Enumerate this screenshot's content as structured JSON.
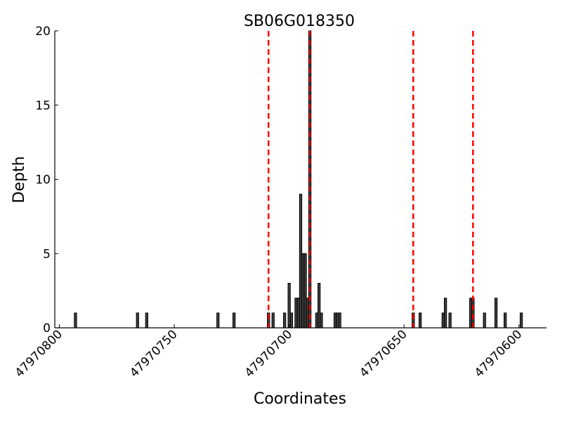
{
  "chart_data": {
    "type": "bar",
    "title": "SB06G018350",
    "xlabel": "Coordinates",
    "ylabel": "Depth",
    "xlim": [
      47970802,
      47970588
    ],
    "x_reversed": true,
    "ylim": [
      0,
      20
    ],
    "xticks": [
      47970800,
      47970750,
      47970700,
      47970650,
      47970600
    ],
    "xtick_labels": [
      "47970800",
      "47970750",
      "47970700",
      "47970650",
      "47970600"
    ],
    "yticks": [
      0,
      5,
      10,
      15,
      20
    ],
    "ytick_labels": [
      "0",
      "5",
      "10",
      "15",
      "20"
    ],
    "grid": false,
    "bar_color": "#404040",
    "x": [
      47970793,
      47970766,
      47970762,
      47970731,
      47970724,
      47970709,
      47970707,
      47970702,
      47970700,
      47970699,
      47970697,
      47970696,
      47970695,
      47970694,
      47970693,
      47970692,
      47970691,
      47970688,
      47970687,
      47970686,
      47970680,
      47970679,
      47970678,
      47970646,
      47970643,
      47970633,
      47970632,
      47970630,
      47970621,
      47970620,
      47970615,
      47970610,
      47970606,
      47970599
    ],
    "values": [
      1,
      1,
      1,
      1,
      1,
      1,
      1,
      1,
      3,
      1,
      2,
      2,
      9,
      5,
      5,
      2,
      20,
      1,
      3,
      1,
      1,
      1,
      1,
      1,
      1,
      1,
      2,
      1,
      2,
      2,
      1,
      2,
      1,
      1
    ],
    "vlines": {
      "color": "#ff0000",
      "style": "dashed",
      "x": [
        47970709,
        47970691,
        47970646,
        47970620
      ]
    }
  }
}
